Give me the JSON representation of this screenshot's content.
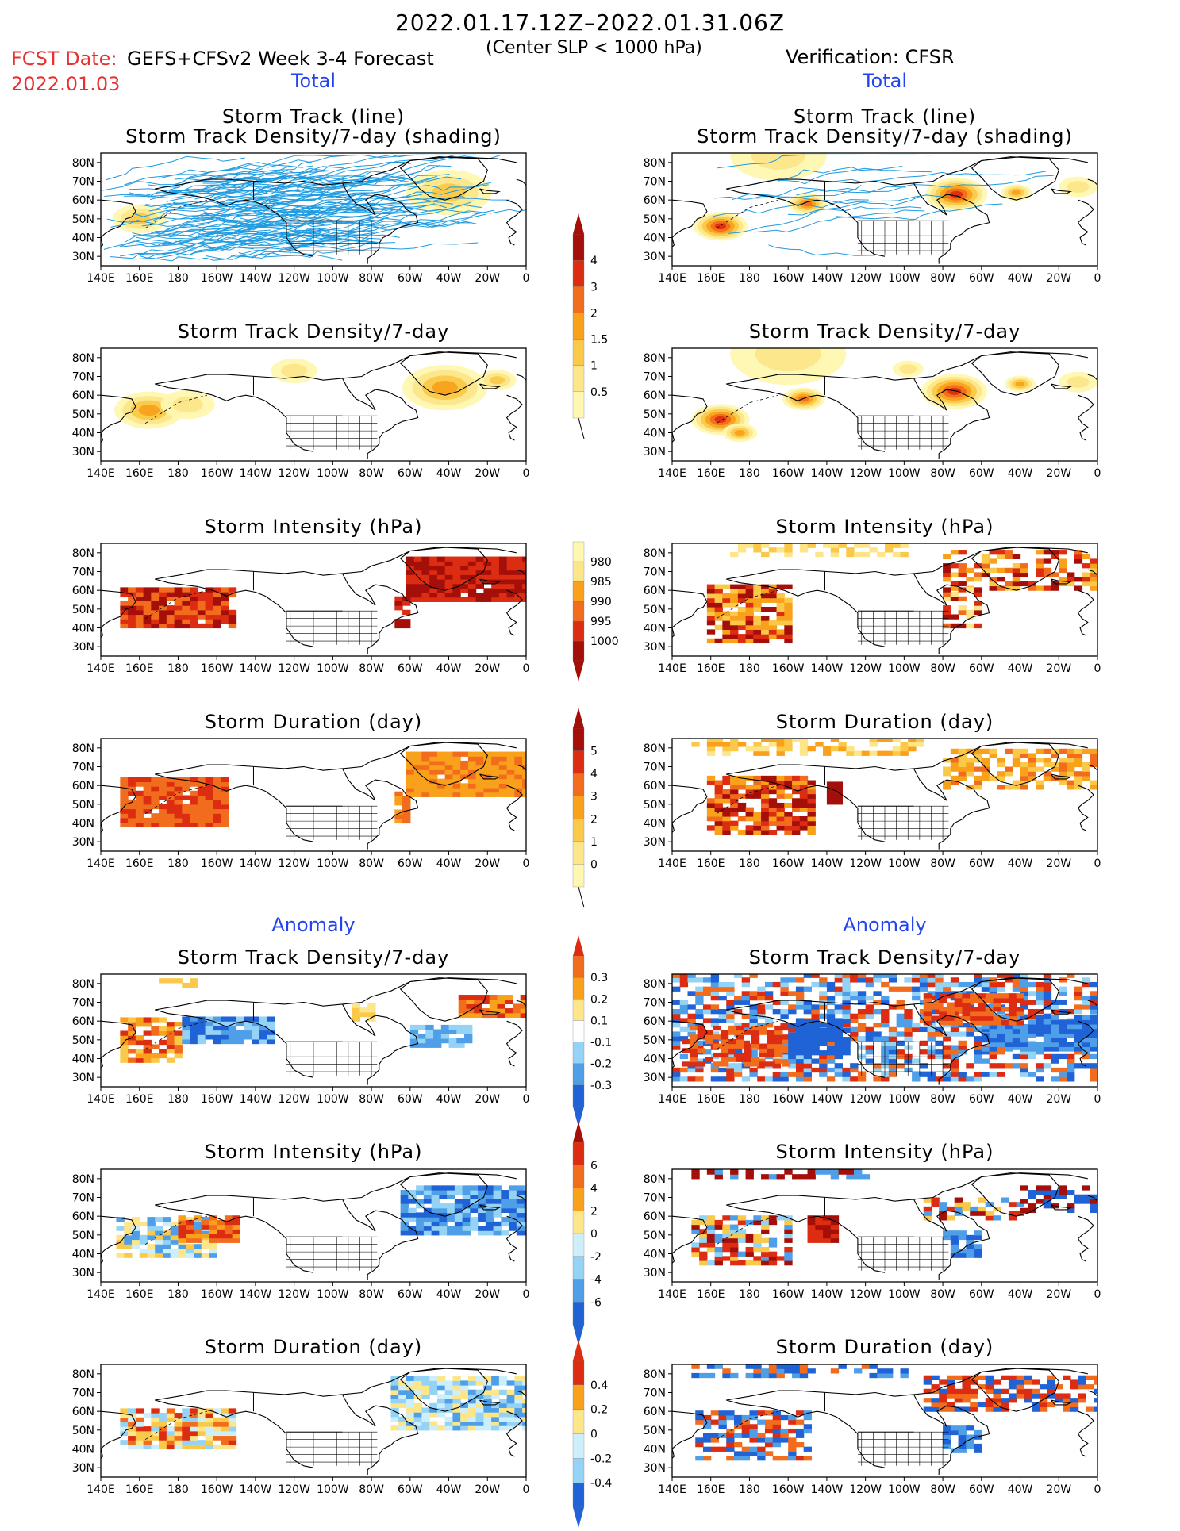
{
  "header": {
    "date_range": "2022.01.17.12Z–2022.01.31.06Z",
    "fcst_label": "FCST Date:",
    "fcst_date": "2022.01.03",
    "model": "GEFS+CFSv2 Week 3-4 Forecast",
    "slp_note": "(Center SLP < 1000 hPa)",
    "verification": "Verification: CFSR"
  },
  "sections": {
    "total": "Total",
    "anomaly": "Anomaly"
  },
  "panel_titles": {
    "track_line": "Storm Track (line)",
    "track_shading": "Storm Track Density/7-day (shading)",
    "density": "Storm Track Density/7-day",
    "intensity": "Storm Intensity (hPa)",
    "duration": "Storm Duration (day)"
  },
  "axes": {
    "lon_labels": [
      "140E",
      "160E",
      "180",
      "160W",
      "140W",
      "120W",
      "100W",
      "80W",
      "60W",
      "40W",
      "20W",
      "0"
    ],
    "lat_labels": [
      "80N",
      "70N",
      "60N",
      "50N",
      "40N",
      "30N"
    ]
  },
  "colorbars": {
    "density_total": [
      "0.5",
      "1",
      "1.5",
      "2",
      "3",
      "4"
    ],
    "intensity_total": [
      "1000",
      "995",
      "990",
      "985",
      "980"
    ],
    "duration_total": [
      "0",
      "1",
      "2",
      "3",
      "4",
      "5"
    ],
    "density_anom": [
      "-0.3",
      "-0.2",
      "-0.1",
      "0.1",
      "0.2",
      "0.3"
    ],
    "intensity_anom": [
      "-6",
      "-4",
      "-2",
      "0",
      "2",
      "4",
      "6"
    ],
    "duration_anom": [
      "-0.4",
      "-0.2",
      "0",
      "0.2",
      "0.4"
    ]
  },
  "colors": {
    "track_line": "#1e9be0",
    "scale_warm": [
      "#fff7b0",
      "#fde68a",
      "#fbc94a",
      "#f9a11b",
      "#f26c1d",
      "#dc2d12",
      "#a50f0a"
    ],
    "scale_cool": [
      "#cdeefb",
      "#94d3f5",
      "#4f9fe8",
      "#1f63d6"
    ],
    "header_red": "#e8312f",
    "header_blue": "#2244ee"
  }
}
